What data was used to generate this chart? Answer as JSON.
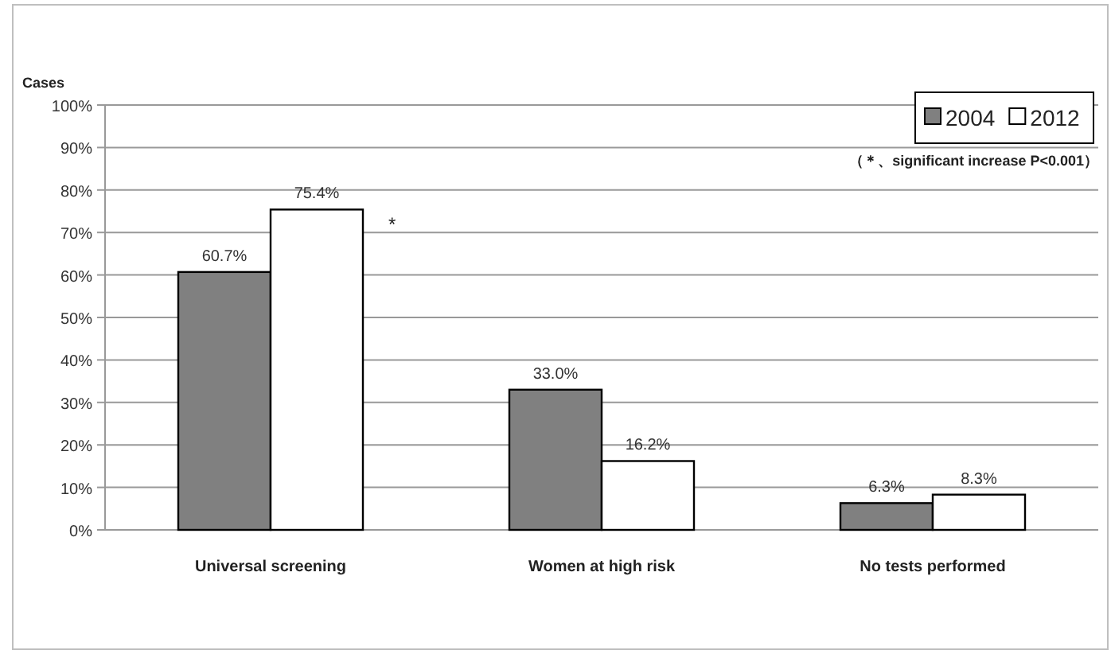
{
  "chart_data": {
    "type": "bar",
    "ylabel": "Cases",
    "categories": [
      "Universal screening",
      "Women at high risk",
      "No tests performed"
    ],
    "series": [
      {
        "name": "2004",
        "color": "#808080",
        "values": [
          60.7,
          33.0,
          6.3
        ],
        "value_labels": [
          "60.7%",
          "33.0%",
          "6.3%"
        ]
      },
      {
        "name": "2012",
        "color": "#ffffff",
        "values": [
          75.4,
          16.2,
          8.3
        ],
        "value_labels": [
          "75.4%",
          "16.2%",
          "8.3%"
        ]
      }
    ],
    "ylim": [
      0,
      100
    ],
    "yticks": [
      {
        "value": 0,
        "label": "0%"
      },
      {
        "value": 10,
        "label": "10%"
      },
      {
        "value": 20,
        "label": "20%"
      },
      {
        "value": 30,
        "label": "30%"
      },
      {
        "value": 40,
        "label": "40%"
      },
      {
        "value": 50,
        "label": "50%"
      },
      {
        "value": 60,
        "label": "60%"
      },
      {
        "value": 70,
        "label": "70%"
      },
      {
        "value": 80,
        "label": "80%"
      },
      {
        "value": 90,
        "label": "90%"
      },
      {
        "value": 100,
        "label": "100%"
      }
    ],
    "grid": "y",
    "legend": "top right",
    "annotations": [
      "*",
      "（＊、significant increase  P<0.001）"
    ]
  }
}
